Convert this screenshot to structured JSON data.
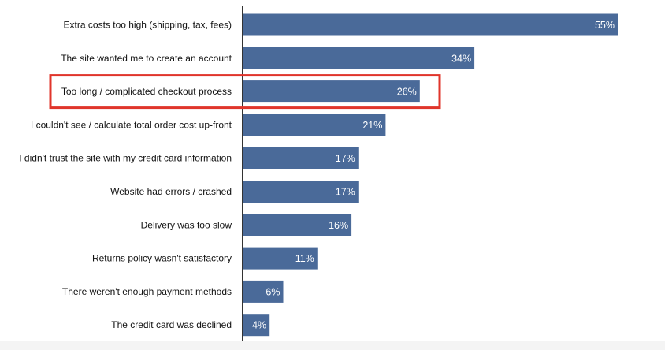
{
  "chart_data": {
    "type": "bar",
    "orientation": "horizontal",
    "title": "",
    "xlabel": "",
    "ylabel": "",
    "xlim": [
      0,
      65
    ],
    "grid": false,
    "legend": "none",
    "categories": [
      "Extra costs too high (shipping, tax, fees)",
      "The site wanted me to create an account",
      "Too long / complicated checkout process",
      "I couldn't see / calculate total order cost up-front",
      "I didn't trust the site with my credit card information",
      "Website had errors / crashed",
      "Delivery was too slow",
      "Returns policy wasn't satisfactory",
      "There weren't enough payment methods",
      "The credit card was declined"
    ],
    "values": [
      55,
      34,
      26,
      21,
      17,
      17,
      16,
      11,
      6,
      4
    ],
    "value_labels": [
      "55%",
      "34%",
      "26%",
      "21%",
      "17%",
      "17%",
      "16%",
      "11%",
      "6%",
      "4%"
    ],
    "highlighted_category": "Too long / complicated checkout process",
    "bar_color": "#4a6a99",
    "highlight_color": "#e0352b",
    "label_color": "#111111",
    "value_label_color": "#ffffff"
  }
}
